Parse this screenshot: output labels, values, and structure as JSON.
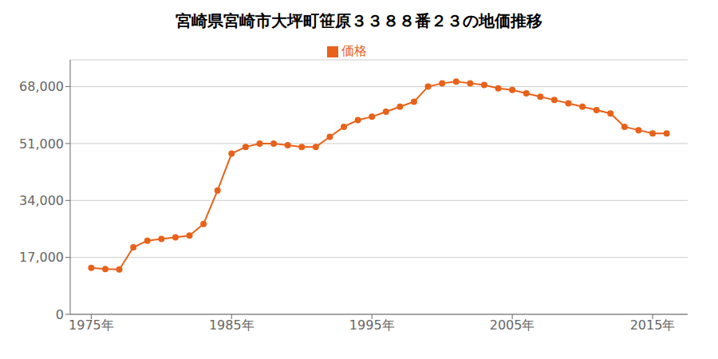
{
  "chart_data": {
    "type": "line",
    "title": "宮崎県宮崎市大坪町笹原３３８８番２３の地価推移",
    "x": [
      1975,
      1976,
      1977,
      1978,
      1979,
      1980,
      1981,
      1982,
      1983,
      1984,
      1985,
      1986,
      1987,
      1988,
      1989,
      1990,
      1991,
      1992,
      1993,
      1994,
      1995,
      1996,
      1997,
      1998,
      1999,
      2000,
      2001,
      2002,
      2003,
      2004,
      2005,
      2006,
      2007,
      2008,
      2009,
      2010,
      2011,
      2012,
      2013,
      2014,
      2015,
      2016
    ],
    "series": [
      {
        "name": "価格",
        "color": "#e8621a",
        "marker": "circle",
        "values": [
          13900,
          13500,
          13400,
          20000,
          22000,
          22500,
          23000,
          23500,
          27000,
          37000,
          48000,
          50000,
          51000,
          51000,
          50500,
          50000,
          50000,
          53000,
          56000,
          58000,
          59000,
          60500,
          62000,
          63500,
          68000,
          69000,
          69500,
          69000,
          68500,
          67500,
          67000,
          66000,
          65000,
          64000,
          63000,
          62000,
          61000,
          60000,
          56000,
          55000,
          54000,
          54000
        ]
      }
    ],
    "xlim": [
      1973.5,
      2017.5
    ],
    "xticks": [
      {
        "value": 1975,
        "label": "1975年"
      },
      {
        "value": 1985,
        "label": "1985年"
      },
      {
        "value": 1995,
        "label": "1995年"
      },
      {
        "value": 2005,
        "label": "2005年"
      },
      {
        "value": 2015,
        "label": "2015年"
      }
    ],
    "ylim": [
      0,
      76000
    ],
    "yticks": [
      0,
      {
        "value": 17000,
        "label": "17,000"
      },
      {
        "value": 34000,
        "label": "34,000"
      },
      {
        "value": 51000,
        "label": "51,000"
      },
      {
        "value": 68000,
        "label": "68,000"
      }
    ],
    "grid": "y",
    "legend": "top"
  }
}
